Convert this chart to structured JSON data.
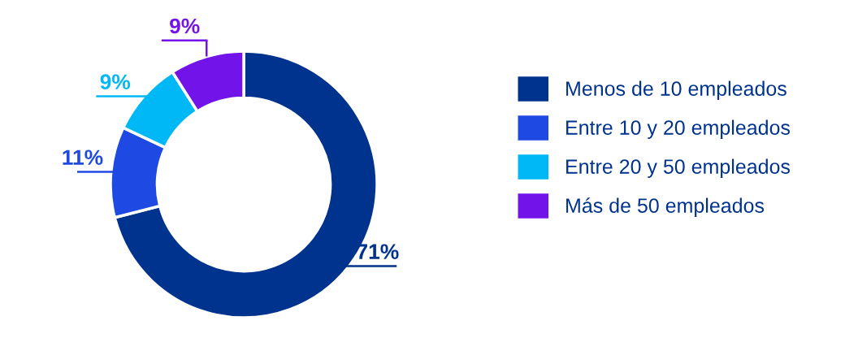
{
  "chart_data": {
    "type": "donut",
    "categories": [
      "Menos de 10 empleados",
      "Entre 10 y 20 empleados",
      "Entre 20 y 50 empleados",
      "Más de 50 empleados"
    ],
    "values": [
      71,
      11,
      9,
      9
    ],
    "colors": [
      "#00338d",
      "#1e49e2",
      "#00b8f5",
      "#7213ea"
    ],
    "value_labels": [
      "71%",
      "11%",
      "9%",
      "9%"
    ],
    "legend": "right"
  }
}
